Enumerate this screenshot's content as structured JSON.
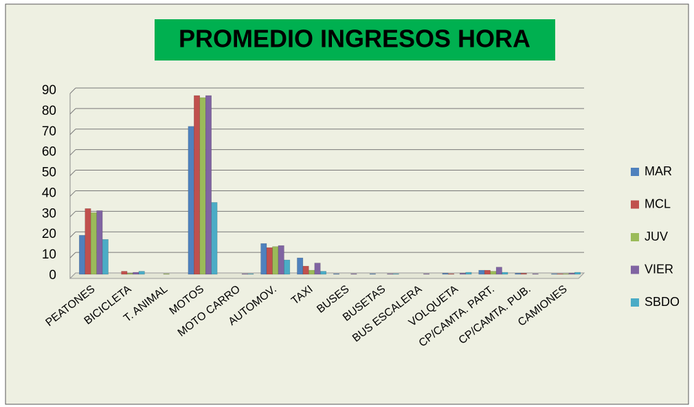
{
  "chart_data": {
    "type": "bar",
    "title": "PROMEDIO INGRESOS HORA",
    "categories": [
      "PEATONES",
      "BICICLETA",
      "T. ANIMAL",
      "MOTOS",
      "MOTO CARRO",
      "AUTOMOV.",
      "TAXI",
      "BUSES",
      "BUSETAS",
      "BUS ESCALERA",
      "VOLQUETA",
      "CP/CAMTA. PART.",
      "CP/CAMTA. PUB.",
      "CAMIONES"
    ],
    "series": [
      {
        "name": "MAR",
        "color": "#4f81bd",
        "values": [
          19,
          0,
          0,
          72,
          0,
          15,
          8,
          0.3,
          0.3,
          0,
          0.5,
          2,
          0.5,
          0.3
        ]
      },
      {
        "name": "MCL",
        "color": "#c0504d",
        "values": [
          32,
          1.5,
          0,
          87,
          0,
          13,
          4,
          0,
          0,
          0,
          0.3,
          2,
          0.5,
          0.3
        ]
      },
      {
        "name": "JUV",
        "color": "#9bbb59",
        "values": [
          30,
          0.5,
          0.3,
          86,
          0,
          13.5,
          2,
          0,
          0,
          0,
          0,
          1.5,
          0,
          0.3
        ]
      },
      {
        "name": "VIER",
        "color": "#8064a2",
        "values": [
          31,
          1,
          0,
          87,
          0.3,
          14,
          5.5,
          0.3,
          0.3,
          0.3,
          0.5,
          3.5,
          0.3,
          0.5
        ]
      },
      {
        "name": "SBDO",
        "color": "#4bacc6",
        "values": [
          17,
          1.5,
          0,
          35,
          0.3,
          7,
          1.5,
          0,
          0.3,
          0,
          1,
          1,
          0,
          1
        ]
      }
    ],
    "ylim": [
      0,
      90
    ],
    "yticks": [
      0,
      10,
      20,
      30,
      40,
      50,
      60,
      70,
      80,
      90
    ],
    "grid": true,
    "legend": "right"
  }
}
